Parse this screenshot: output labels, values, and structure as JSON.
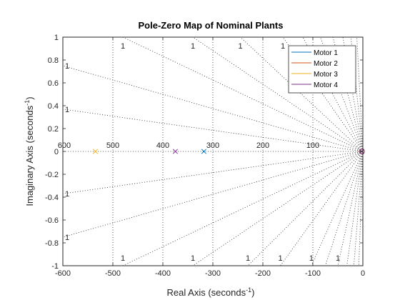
{
  "chart_data": {
    "type": "scatter",
    "title": "Pole-Zero Map of Nominal Plants",
    "xlabel": "Real Axis (seconds",
    "ylabel": "Imaginary Axis (seconds",
    "label_exponent": "-1",
    "label_close": ")",
    "xlim": [
      -600,
      0
    ],
    "ylim": [
      -1,
      1
    ],
    "x_ticks": [
      -600,
      -500,
      -400,
      -300,
      -200,
      -100,
      0
    ],
    "x_tick_labels": [
      "-600",
      "-500",
      "-400",
      "-300",
      "-200",
      "-100",
      "0"
    ],
    "y_ticks": [
      -1,
      -0.8,
      -0.6,
      -0.4,
      -0.2,
      0,
      0.2,
      0.4,
      0.6,
      0.8,
      1
    ],
    "y_tick_labels": [
      "-1",
      "-0.8",
      "-0.6",
      "-0.4",
      "-0.2",
      "0",
      "0.2",
      "0.4",
      "0.6",
      "0.8",
      "1"
    ],
    "grid": "s-plane (damping and natural-frequency lines)",
    "legend_position": "top-right",
    "frequency_labels": [
      {
        "value": 600,
        "text": "600"
      },
      {
        "value": 500,
        "text": "500"
      },
      {
        "value": 400,
        "text": "400"
      },
      {
        "value": 300,
        "text": "300"
      },
      {
        "value": 200,
        "text": "200"
      },
      {
        "value": 100,
        "text": "100"
      }
    ],
    "damping_label_text": "1",
    "top_damping_label_x": [
      -480,
      -340,
      -245,
      -160
    ],
    "bottom_damping_label_x": [
      -480,
      -340,
      -230,
      -165,
      -103,
      -50
    ],
    "left_damping_label_y": [
      0.75,
      0.37,
      -0.37,
      -0.75
    ],
    "series": [
      {
        "name": "Motor 1",
        "color": "#0072BD",
        "poles": [
          {
            "x": -318,
            "y": 0
          },
          {
            "x": -2,
            "y": 0
          }
        ],
        "zeros": [
          {
            "x": -2,
            "y": 0
          }
        ]
      },
      {
        "name": "Motor 2",
        "color": "#D95319",
        "poles": [
          {
            "x": -2,
            "y": 0
          }
        ],
        "zeros": [
          {
            "x": -2,
            "y": 0
          }
        ]
      },
      {
        "name": "Motor 3",
        "color": "#EDB120",
        "poles": [
          {
            "x": -535,
            "y": 0
          },
          {
            "x": -2,
            "y": 0
          }
        ],
        "zeros": [
          {
            "x": -2,
            "y": 0
          }
        ]
      },
      {
        "name": "Motor 4",
        "color": "#7E2F8E",
        "poles": [
          {
            "x": -375,
            "y": 0
          },
          {
            "x": -2,
            "y": 0
          }
        ],
        "zeros": [
          {
            "x": -2,
            "y": 0
          }
        ]
      }
    ]
  }
}
